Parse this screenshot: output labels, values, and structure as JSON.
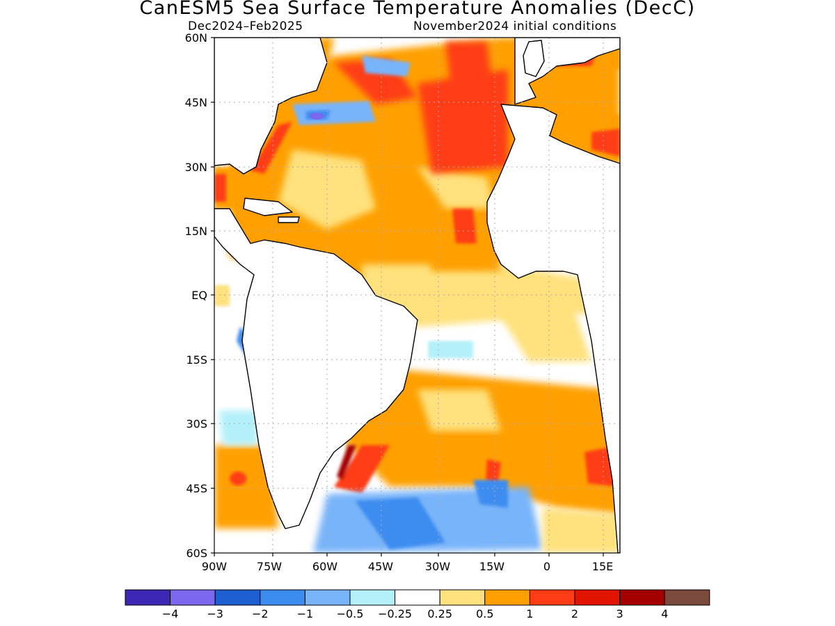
{
  "title": "CanESM5 Sea Surface Temperature Anomalies (DecC)",
  "subtitle_left": "Dec2024–Feb2025",
  "subtitle_right": "November2024 initial conditions",
  "lat_labels": [
    "60N",
    "45N",
    "30N",
    "15N",
    "EQ",
    "15S",
    "30S",
    "45S",
    "60S"
  ],
  "lon_labels": [
    "90W",
    "75W",
    "60W",
    "45W",
    "30W",
    "15W",
    "0",
    "15E"
  ],
  "legend": {
    "colors": [
      "#3c28b4",
      "#7b68ee",
      "#1e5fd2",
      "#3c8cf0",
      "#78b4fa",
      "#b4f0fa",
      "#ffffff",
      "#ffe17d",
      "#ffa000",
      "#ff3c14",
      "#e11400",
      "#a50000",
      "#7a4a3c"
    ],
    "labels": [
      "−4",
      "−3",
      "−2",
      "−1",
      "−0.5",
      "−0.25",
      "0.25",
      "0.5",
      "1",
      "2",
      "3",
      "4"
    ]
  },
  "colors": {
    "land": "#ffffff",
    "coast": "#000000",
    "grid": "#aaaaaa"
  }
}
